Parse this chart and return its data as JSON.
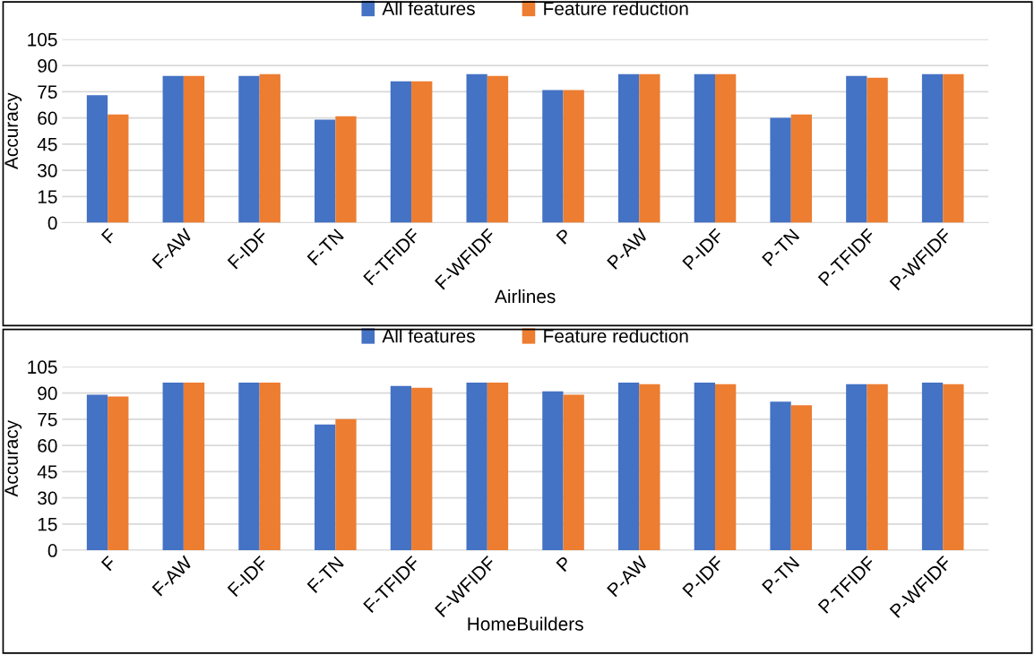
{
  "chart_data": [
    {
      "type": "bar",
      "xlabel": "Airlines",
      "ylabel": "Accuracy",
      "categories": [
        "F",
        "F-AW",
        "F-IDF",
        "F-TN",
        "F-TFIDF",
        "F-WFIDF",
        "P",
        "P-AW",
        "P-IDF",
        "P-TN",
        "P-TFIDF",
        "P-WFIDF"
      ],
      "series": [
        {
          "name": "All features",
          "color": "#4472c4",
          "values": [
            73,
            84,
            84,
            59,
            81,
            85,
            76,
            85,
            85,
            60,
            84,
            85
          ]
        },
        {
          "name": "Feature reduction",
          "color": "#ed7d31",
          "values": [
            62,
            84,
            85,
            61,
            81,
            84,
            76,
            85,
            85,
            62,
            83,
            85
          ]
        }
      ],
      "ylim": [
        0,
        105
      ],
      "yticks": [
        0,
        15,
        30,
        45,
        60,
        75,
        90,
        105
      ],
      "grid": "y",
      "legend": "top"
    },
    {
      "type": "bar",
      "xlabel": "HomeBuilders",
      "ylabel": "Accuracy",
      "categories": [
        "F",
        "F-AW",
        "F-IDF",
        "F-TN",
        "F-TFIDF",
        "F-WFIDF",
        "P",
        "P-AW",
        "P-IDF",
        "P-TN",
        "P-TFIDF",
        "P-WFIDF"
      ],
      "series": [
        {
          "name": "All features",
          "color": "#4472c4",
          "values": [
            89,
            96,
            96,
            72,
            94,
            96,
            91,
            96,
            96,
            85,
            95,
            96
          ]
        },
        {
          "name": "Feature reduction",
          "color": "#ed7d31",
          "values": [
            88,
            96,
            96,
            75,
            93,
            96,
            89,
            95,
            95,
            83,
            95,
            95
          ]
        }
      ],
      "ylim": [
        0,
        105
      ],
      "yticks": [
        0,
        15,
        30,
        45,
        60,
        75,
        90,
        105
      ],
      "grid": "y",
      "legend": "top"
    }
  ]
}
